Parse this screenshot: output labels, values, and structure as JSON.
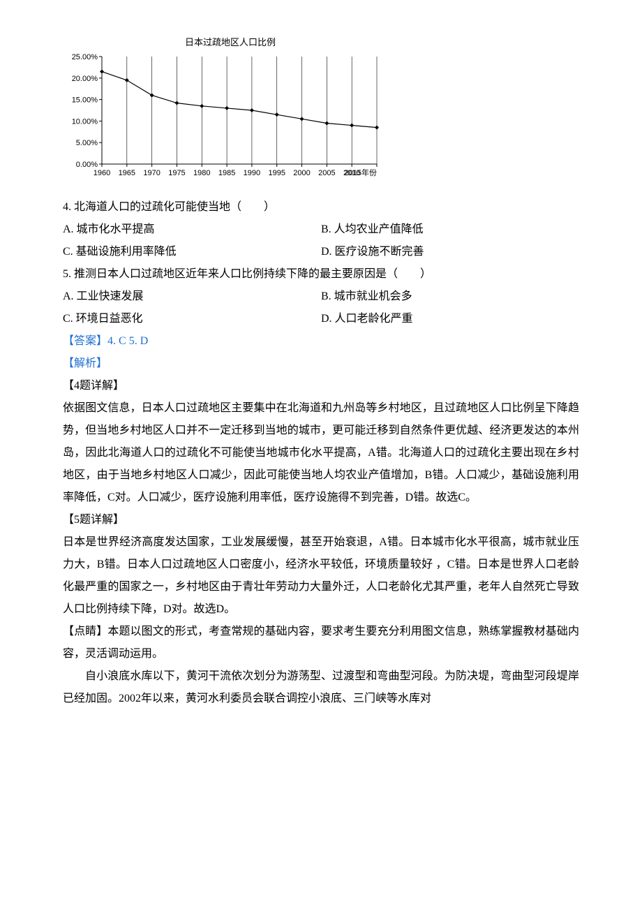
{
  "chart": {
    "title": "日本过疏地区人口比例",
    "type": "line",
    "x_label_suffix": "年份",
    "x_ticks": [
      1960,
      1965,
      1970,
      1975,
      1980,
      1985,
      1990,
      1995,
      2000,
      2005,
      2010,
      2015
    ],
    "y_ticks_labels": [
      "0.00%",
      "5.00%",
      "10.00%",
      "15.00%",
      "20.00%",
      "25.00%"
    ],
    "y_ticks_values": [
      0,
      5,
      10,
      15,
      20,
      25
    ],
    "ylim": [
      0,
      25
    ],
    "xlim": [
      1960,
      2015
    ],
    "points": [
      {
        "x": 1960,
        "y": 21.5
      },
      {
        "x": 1965,
        "y": 19.5
      },
      {
        "x": 1970,
        "y": 16.0
      },
      {
        "x": 1975,
        "y": 14.2
      },
      {
        "x": 1980,
        "y": 13.5
      },
      {
        "x": 1985,
        "y": 13.0
      },
      {
        "x": 1990,
        "y": 12.5
      },
      {
        "x": 1995,
        "y": 11.5
      },
      {
        "x": 2000,
        "y": 10.5
      },
      {
        "x": 2005,
        "y": 9.5
      },
      {
        "x": 2010,
        "y": 9.0
      },
      {
        "x": 2015,
        "y": 8.5
      }
    ],
    "line_color": "#000000",
    "marker_color": "#000000",
    "marker_size": 3,
    "line_width": 1.2,
    "grid_color": "#000000",
    "grid_width": 0.6,
    "background_color": "#ffffff",
    "axis_fontsize": 11,
    "title_fontsize": 13,
    "tick_fontsize": 11
  },
  "q4": {
    "stem": "4. 北海道人口的过疏化可能使当地（　　）",
    "A": "A. 城市化水平提高",
    "B": "B. 人均农业产值降低",
    "C": "C. 基础设施利用率降低",
    "D": "D. 医疗设施不断完善"
  },
  "q5": {
    "stem": "5. 推测日本人口过疏地区近年来人口比例持续下降的最主要原因是（　　）",
    "A": "A. 工业快速发展",
    "B": "B. 城市就业机会多",
    "C": "C. 环境日益恶化",
    "D": "D. 人口老龄化严重"
  },
  "answer": {
    "label": "【答案】",
    "text": "4. C    5. D"
  },
  "analysis": {
    "label": "【解析】",
    "q4_head": "【4题详解】",
    "q4_body": "依据图文信息，日本人口过疏地区主要集中在北海道和九州岛等乡村地区，且过疏地区人口比例呈下降趋势，但当地乡村地区人口并不一定迁移到当地的城市，更可能迁移到自然条件更优越、经济更发达的本州岛，因此北海道人口的过疏化不可能使当地城市化水平提高，A错。北海道人口的过疏化主要出现在乡村地区，由于当地乡村地区人口减少，因此可能使当地人均农业产值增加，B错。人口减少，基础设施利用率降低，C对。人口减少，医疗设施利用率低，医疗设施得不到完善，D错。故选C。",
    "q5_head": "【5题详解】",
    "q5_body": "日本是世界经济高度发达国家，工业发展缓慢，甚至开始衰退，A错。日本城市化水平很高，城市就业压力大，B错。日本人口过疏地区人口密度小，经济水平较低，环境质量较好 ，C错。日本是世界人口老龄化最严重的国家之一，乡村地区由于青壮年劳动力大量外迁，人口老龄化尤其严重，老年人自然死亡导致人口比例持续下降，D对。故选D。",
    "tip": "【点睛】本题以图文的形式，考查常规的基础内容，要求考生要充分利用图文信息，熟练掌握教材基础内容，灵活调动运用。"
  },
  "passage": "自小浪底水库以下，黄河干流依次划分为游荡型、过渡型和弯曲型河段。为防决堤，弯曲型河段堤岸已经加固。2002年以来，黄河水利委员会联合调控小浪底、三门峡等水库对"
}
